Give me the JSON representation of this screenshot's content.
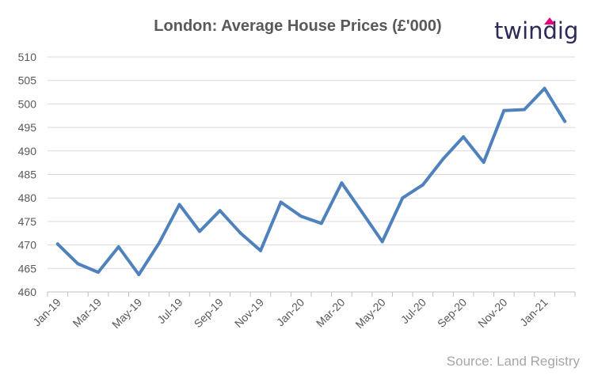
{
  "chart_data": {
    "type": "line",
    "title": "London: Average House Prices (£'000)",
    "xlabel": "",
    "ylabel": "",
    "ylim": [
      460,
      510
    ],
    "y_ticks": [
      460,
      465,
      470,
      475,
      480,
      485,
      490,
      495,
      500,
      505,
      510
    ],
    "x_tick_labels": [
      "Jan-19",
      "Mar-19",
      "May-19",
      "Jul-19",
      "Sep-19",
      "Nov-19",
      "Jan-20",
      "Mar-20",
      "May-20",
      "Jul-20",
      "Sep-20",
      "Nov-20",
      "Jan-21"
    ],
    "grid": true,
    "legend": "none",
    "series": [
      {
        "color": "#4f81bd",
        "x": [
          "Jan-19",
          "Feb-19",
          "Mar-19",
          "Apr-19",
          "May-19",
          "Jun-19",
          "Jul-19",
          "Aug-19",
          "Sep-19",
          "Oct-19",
          "Nov-19",
          "Dec-19",
          "Jan-20",
          "Feb-20",
          "Mar-20",
          "Apr-20",
          "May-20",
          "Jun-20",
          "Jul-20",
          "Aug-20",
          "Sep-20",
          "Oct-20",
          "Nov-20",
          "Dec-20",
          "Jan-21",
          "Feb-21"
        ],
        "values": [
          470.2,
          466.0,
          464.2,
          469.6,
          463.7,
          470.4,
          478.6,
          472.9,
          477.3,
          472.6,
          468.8,
          479.1,
          476.1,
          474.6,
          483.2,
          477.0,
          470.7,
          480.0,
          482.8,
          488.3,
          493.0,
          487.6,
          498.6,
          498.8,
          503.3,
          496.3
        ]
      }
    ]
  },
  "source": "Source: Land Registry",
  "logo": {
    "text": "twindig",
    "accent_color": "#e6007e",
    "text_color": "#2b2b55"
  },
  "colors": {
    "grid": "#d9d9d9",
    "axis": "#bfbfbf",
    "text": "#595959",
    "line": "#4f81bd"
  }
}
